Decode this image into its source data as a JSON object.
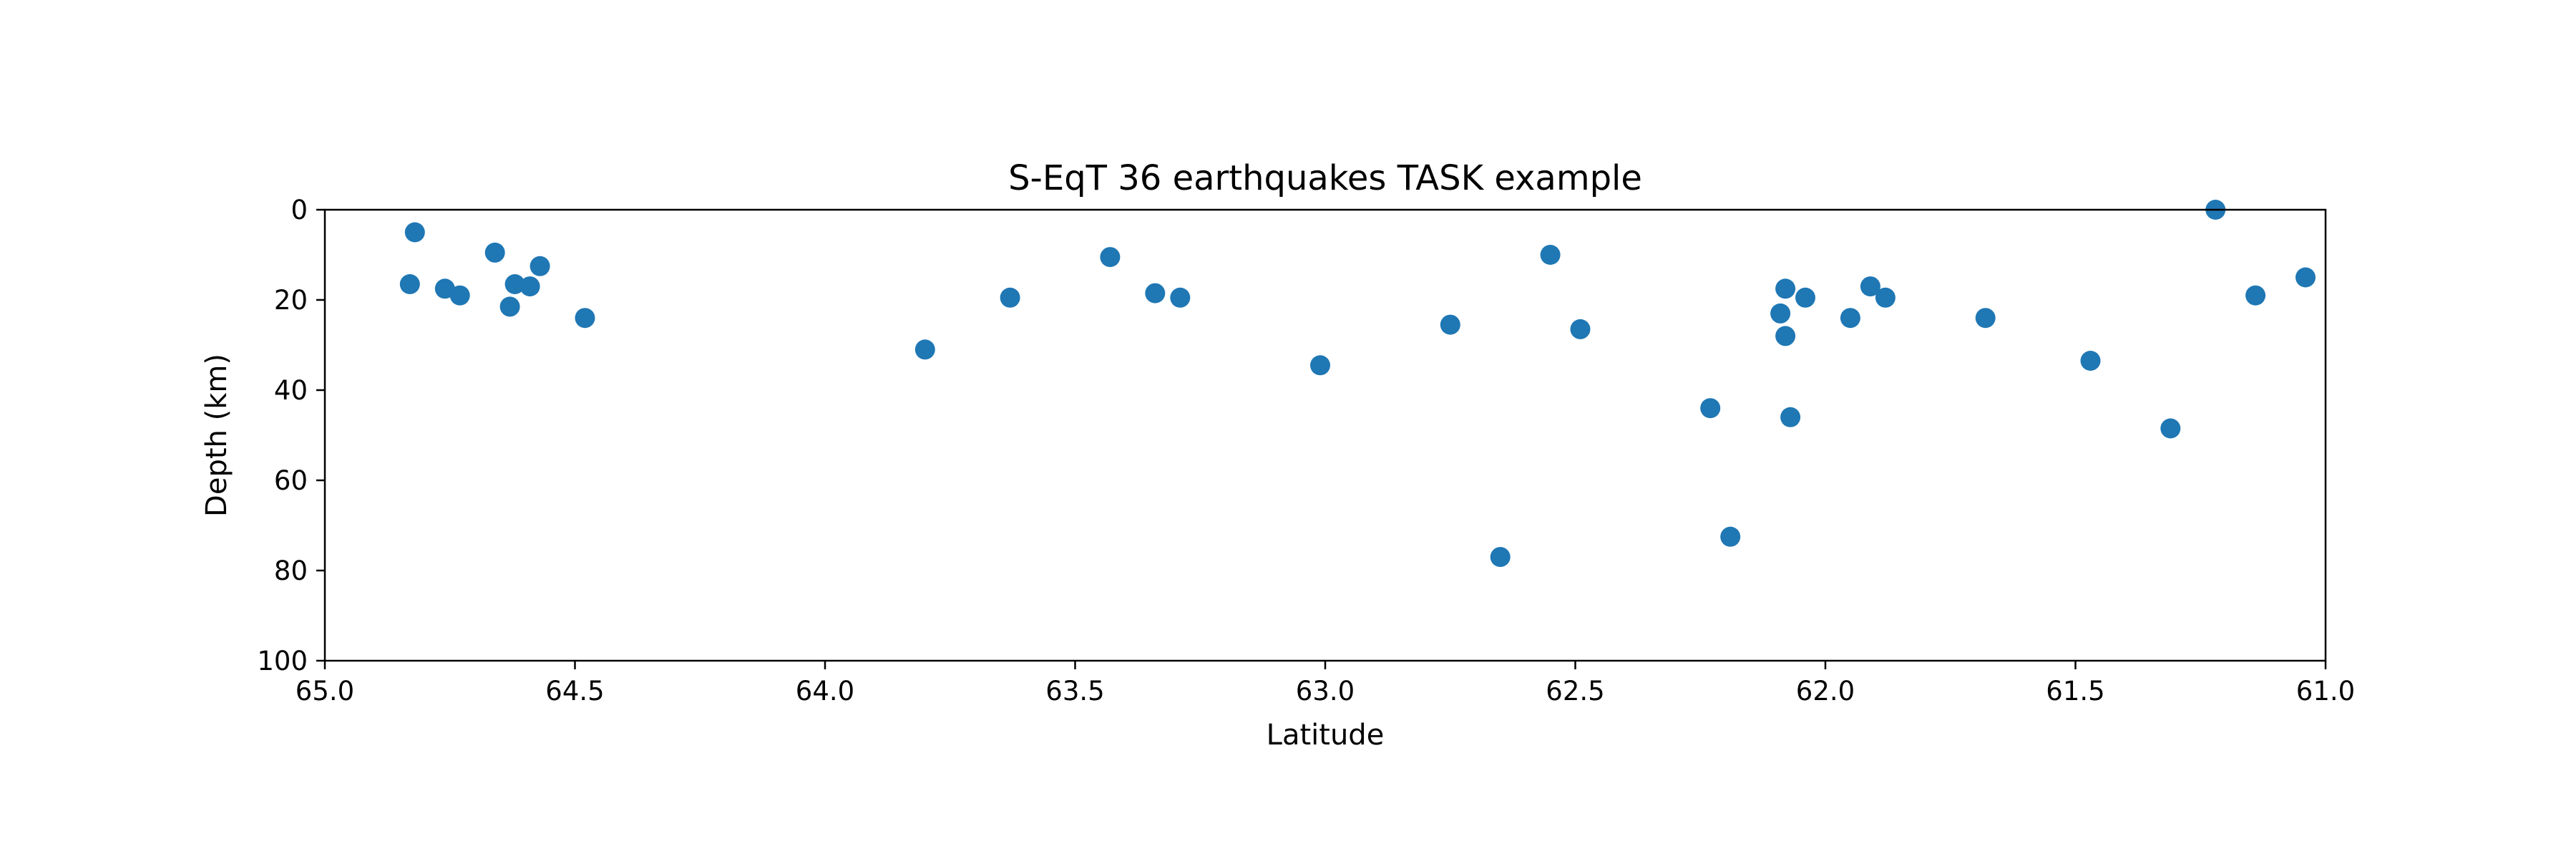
{
  "chart_data": {
    "type": "scatter",
    "title": "S-EqT 36 earthquakes TASK example",
    "xlabel": "Latitude",
    "ylabel": "Depth (km)",
    "xlim": [
      65.0,
      61.0
    ],
    "ylim": [
      100,
      0
    ],
    "x_inverted": true,
    "y_inverted": true,
    "grid": false,
    "xticks": [
      65.0,
      64.5,
      64.0,
      63.5,
      63.0,
      62.5,
      62.0,
      61.5,
      61.0
    ],
    "xtick_labels": [
      "65.0",
      "64.5",
      "64.0",
      "63.5",
      "63.0",
      "62.5",
      "62.0",
      "61.5",
      "61.0"
    ],
    "yticks": [
      0,
      20,
      40,
      60,
      80,
      100
    ],
    "ytick_labels": [
      "0",
      "20",
      "40",
      "60",
      "80",
      "100"
    ],
    "marker_color": "#1f77b4",
    "points": [
      {
        "x": 64.82,
        "y": 5
      },
      {
        "x": 64.83,
        "y": 16.5
      },
      {
        "x": 64.76,
        "y": 17.5
      },
      {
        "x": 64.73,
        "y": 19
      },
      {
        "x": 64.66,
        "y": 9.5
      },
      {
        "x": 64.62,
        "y": 16.5
      },
      {
        "x": 64.63,
        "y": 21.5
      },
      {
        "x": 64.59,
        "y": 17
      },
      {
        "x": 64.57,
        "y": 12.5
      },
      {
        "x": 64.48,
        "y": 24
      },
      {
        "x": 63.8,
        "y": 31
      },
      {
        "x": 63.63,
        "y": 19.5
      },
      {
        "x": 63.43,
        "y": 10.5
      },
      {
        "x": 63.34,
        "y": 18.5
      },
      {
        "x": 63.29,
        "y": 19.5
      },
      {
        "x": 63.01,
        "y": 34.5
      },
      {
        "x": 62.75,
        "y": 25.5
      },
      {
        "x": 62.65,
        "y": 77
      },
      {
        "x": 62.55,
        "y": 10
      },
      {
        "x": 62.49,
        "y": 26.5
      },
      {
        "x": 62.23,
        "y": 44
      },
      {
        "x": 62.19,
        "y": 72.5
      },
      {
        "x": 62.09,
        "y": 23
      },
      {
        "x": 62.08,
        "y": 17.5
      },
      {
        "x": 62.08,
        "y": 28
      },
      {
        "x": 62.07,
        "y": 46
      },
      {
        "x": 62.04,
        "y": 19.5
      },
      {
        "x": 61.95,
        "y": 24
      },
      {
        "x": 61.91,
        "y": 17
      },
      {
        "x": 61.88,
        "y": 19.5
      },
      {
        "x": 61.68,
        "y": 24
      },
      {
        "x": 61.47,
        "y": 33.5
      },
      {
        "x": 61.31,
        "y": 48.5
      },
      {
        "x": 61.22,
        "y": 0
      },
      {
        "x": 61.14,
        "y": 19
      },
      {
        "x": 61.04,
        "y": 15
      }
    ]
  }
}
